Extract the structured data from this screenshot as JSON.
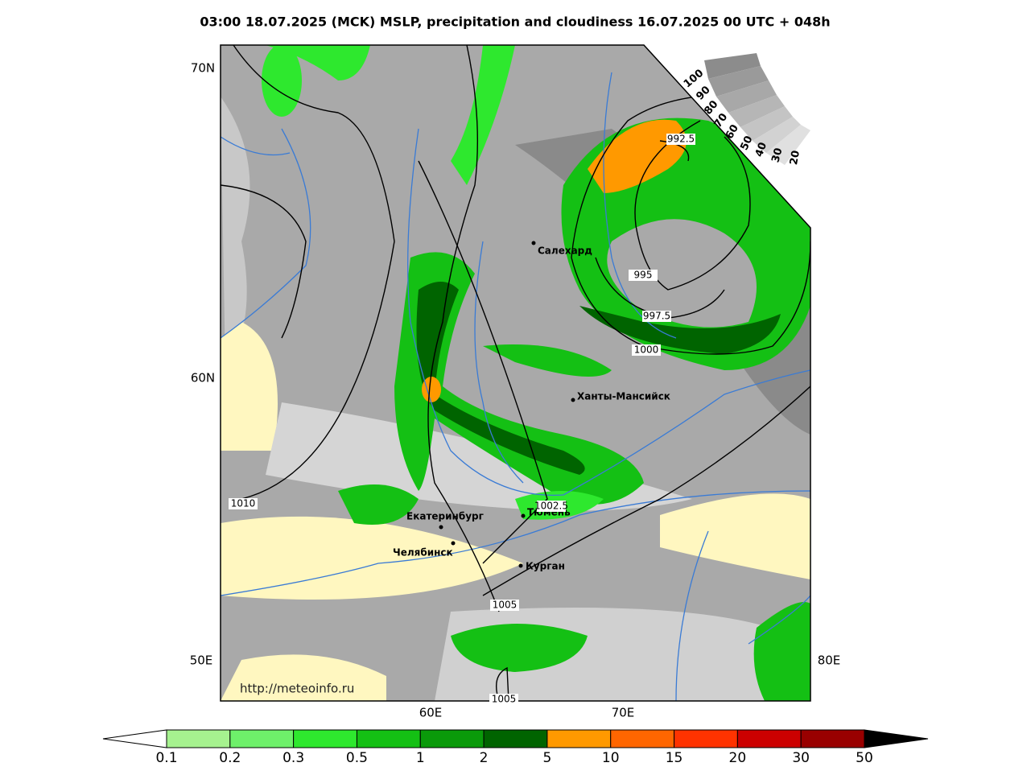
{
  "header": {
    "title": "03:00 18.07.2025 (MCK) MSLP, precipitation and cloudiness 16.07.2025 00 UTC + 048h"
  },
  "map": {
    "grid_labels": [
      "70N",
      "60N",
      "50E",
      "80E",
      "60E",
      "70E"
    ],
    "cities": [
      "Салехард",
      "Ханты-Мансийск",
      "Екатеринбург",
      "Тюмень",
      "Челябинск",
      "Курган"
    ],
    "isobar_labels": [
      "992.5",
      "995",
      "997.5",
      "1000",
      "1002.5",
      "1005",
      "1010",
      "1005"
    ],
    "cloudiness_scale": [
      "100",
      "90",
      "80",
      "70",
      "60",
      "50",
      "40",
      "30",
      "20"
    ],
    "source": "http://meteoinfo.ru"
  },
  "colorbar": {
    "ticks": [
      0.1,
      0.2,
      0.3,
      0.5,
      1,
      2,
      5,
      10,
      15,
      20,
      30,
      50
    ],
    "colors": [
      "#a6f28f",
      "#6ef06a",
      "#2ee82e",
      "#14c014",
      "#0a9a0a",
      "#006400",
      "#ff9900",
      "#ff6600",
      "#ff3300",
      "#cc0000",
      "#990000"
    ]
  }
}
